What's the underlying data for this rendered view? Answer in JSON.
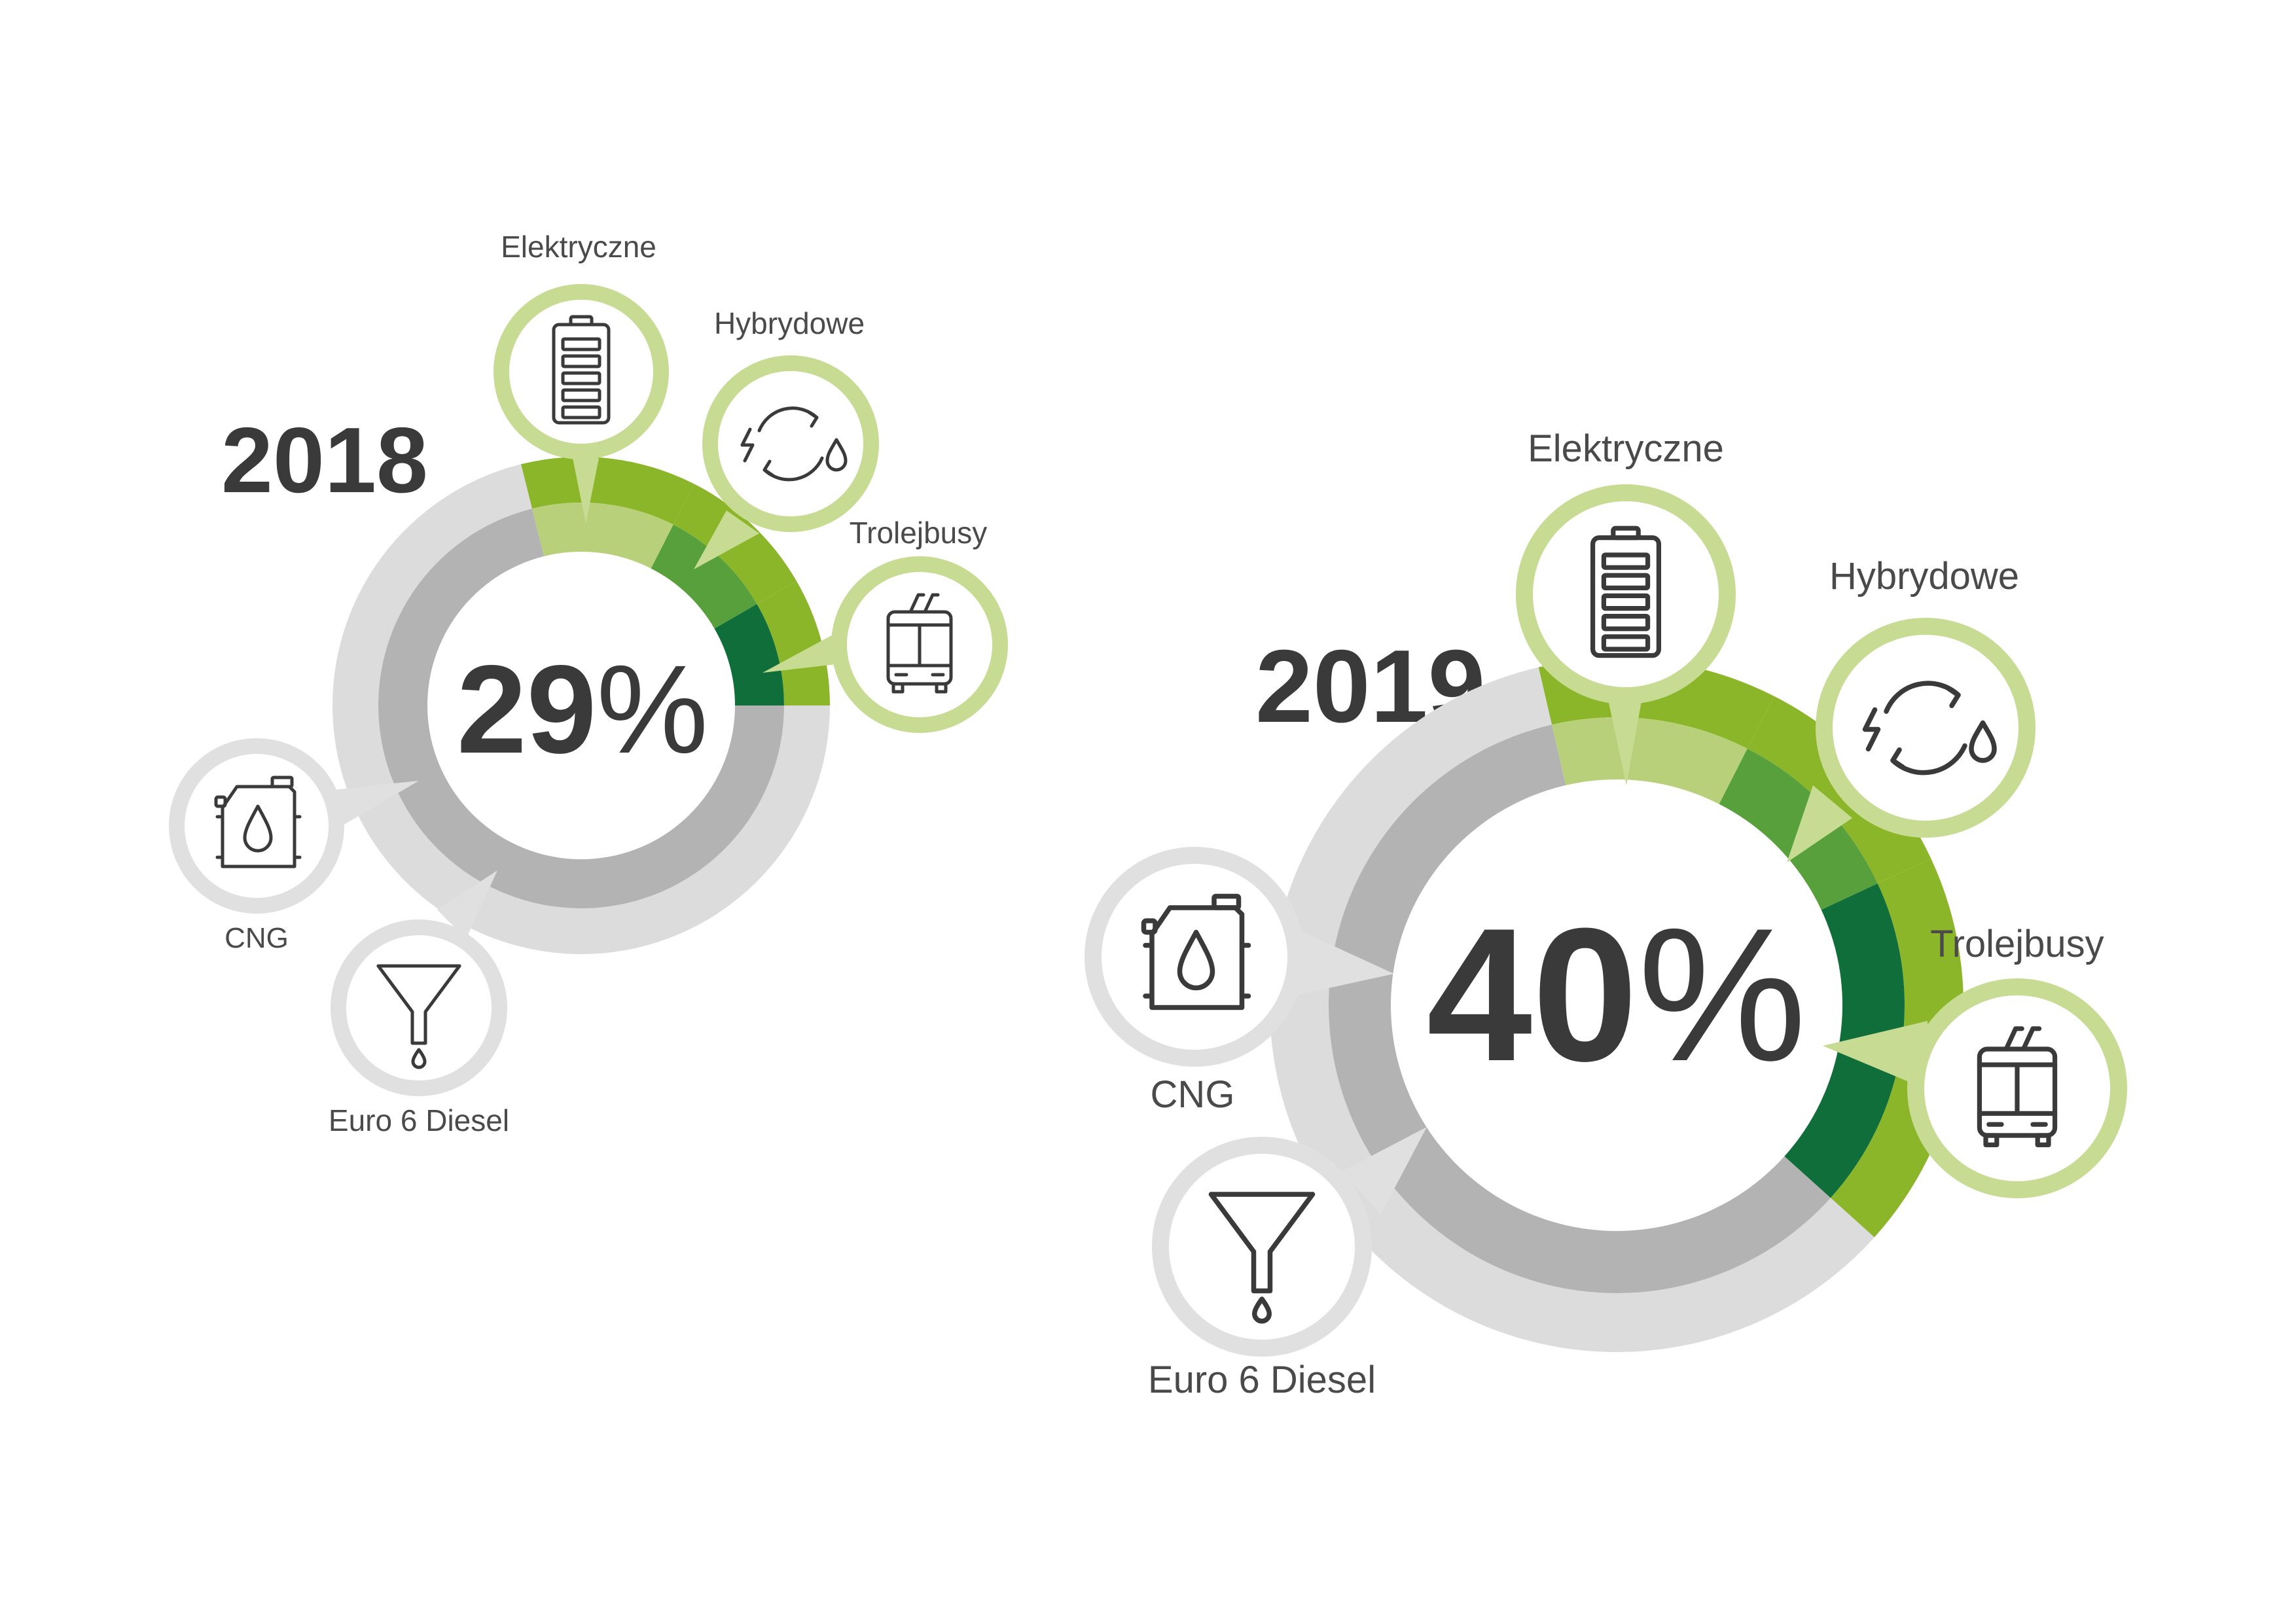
{
  "labels": {
    "electric": "Elektryczne",
    "hybrid": "Hybrydowe",
    "trolley": "Trolejbusy",
    "cng": "CNG",
    "diesel": "Euro 6 Diesel"
  },
  "icons": {
    "electric": "battery-icon",
    "hybrid": "hybrid-cycle-icon",
    "trolley": "trolleybus-icon",
    "cng": "fuel-canister-icon",
    "diesel": "funnel-icon"
  },
  "colors": {
    "electric_outer": "#8cb62a",
    "electric_inner": "#b9d07a",
    "hybrid_outer": "#8cb62a",
    "hybrid_inner": "#58a03c",
    "trolley_outer": "#8cb62a",
    "trolley_inner": "#0f6e3a",
    "fossil_outer": "#dcdcdc",
    "fossil_inner": "#b3b3b3",
    "green_bubble": "#c7dc92",
    "gray_bubble": "#e0e0e0",
    "text_dark": "#3a3a3a"
  },
  "chart_data": [
    {
      "type": "pie",
      "year": "2018",
      "center_value": "29",
      "center_unit": "%",
      "categories": [
        "Elektryczne",
        "Hybrydowe",
        "Trolejbusy",
        "CNG",
        "Euro 6 Diesel"
      ],
      "zero_emission_share_pct": 29
    },
    {
      "type": "pie",
      "year": "2019",
      "center_value": "40",
      "center_unit": "%",
      "categories": [
        "Elektryczne",
        "Hybrydowe",
        "Trolejbusy",
        "CNG",
        "Euro 6 Diesel"
      ],
      "zero_emission_share_pct": 40
    }
  ]
}
